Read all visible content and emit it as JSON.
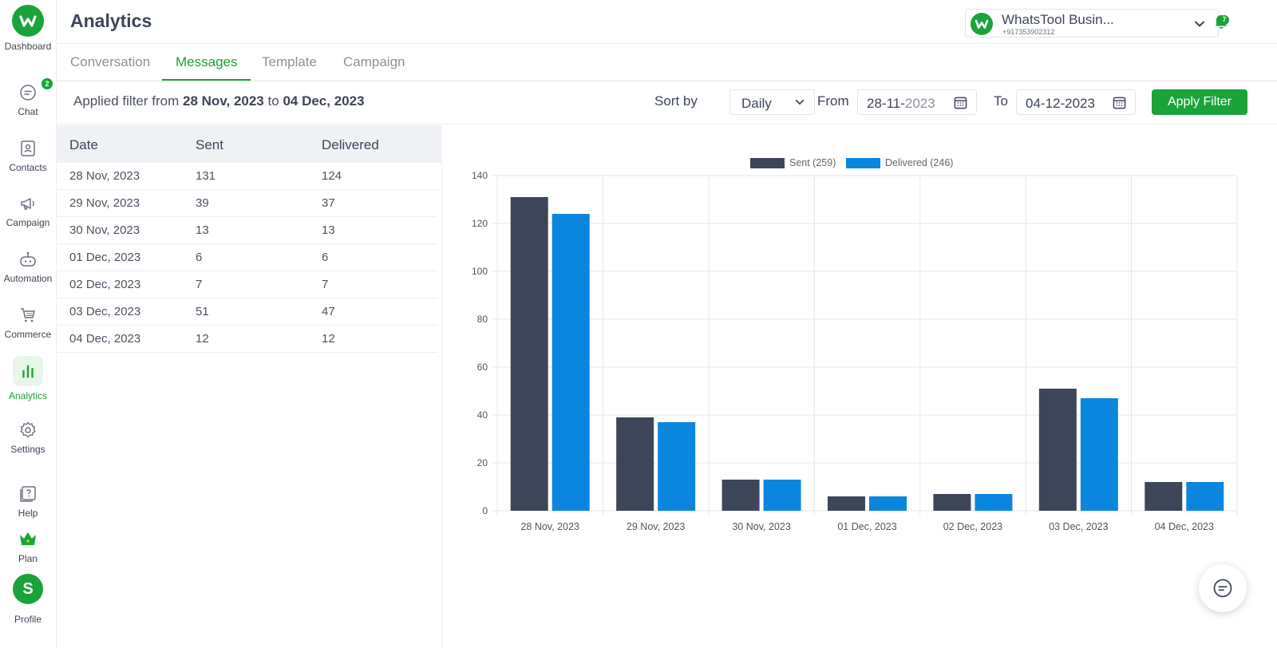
{
  "sidebar": {
    "items": [
      {
        "label": "Dashboard"
      },
      {
        "label": "Chat",
        "badge": "2"
      },
      {
        "label": "Contacts"
      },
      {
        "label": "Campaign"
      },
      {
        "label": "Automation"
      },
      {
        "label": "Commerce"
      },
      {
        "label": "Analytics",
        "active": true
      },
      {
        "label": "Settings"
      },
      {
        "label": "Help"
      },
      {
        "label": "Plan"
      },
      {
        "label": "Profile",
        "avatar_letter": "S"
      }
    ]
  },
  "header": {
    "title": "Analytics",
    "account_name": "WhatsTool Busin...",
    "account_phone": "+917353902312",
    "notification_count": "7"
  },
  "tabs": [
    {
      "label": "Conversation"
    },
    {
      "label": "Messages",
      "active": true
    },
    {
      "label": "Template"
    },
    {
      "label": "Campaign"
    }
  ],
  "filter": {
    "applied_prefix": "Applied filter from",
    "applied_from": "28 Nov, 2023",
    "applied_to_word": "to",
    "applied_to": "04 Dec, 2023",
    "sort_label": "Sort by",
    "sort_value": "Daily",
    "from_label": "From",
    "from_value_main": "28-11-",
    "from_value_year": "2023",
    "to_label": "To",
    "to_value": "04-12-2023",
    "apply_button": "Apply Filter"
  },
  "table": {
    "headers": [
      "Date",
      "Sent",
      "Delivered"
    ],
    "rows": [
      [
        "28 Nov, 2023",
        "131",
        "124"
      ],
      [
        "29 Nov, 2023",
        "39",
        "37"
      ],
      [
        "30 Nov, 2023",
        "13",
        "13"
      ],
      [
        "01 Dec, 2023",
        "6",
        "6"
      ],
      [
        "02 Dec, 2023",
        "7",
        "7"
      ],
      [
        "03 Dec, 2023",
        "51",
        "47"
      ],
      [
        "04 Dec, 2023",
        "12",
        "12"
      ]
    ]
  },
  "colors": {
    "brand": "#1aa33a",
    "sent": "#3d4659",
    "delivered": "#0b86de"
  },
  "chart_data": {
    "type": "bar",
    "categories": [
      "28 Nov, 2023",
      "29 Nov, 2023",
      "30 Nov, 2023",
      "01 Dec, 2023",
      "02 Dec, 2023",
      "03 Dec, 2023",
      "04 Dec, 2023"
    ],
    "series": [
      {
        "name": "Sent (259)",
        "values": [
          131,
          39,
          13,
          6,
          7,
          51,
          12
        ],
        "color": "#3d4659"
      },
      {
        "name": "Delivered (246)",
        "values": [
          124,
          37,
          13,
          6,
          7,
          47,
          12
        ],
        "color": "#0b86de"
      }
    ],
    "ylim": [
      0,
      140
    ],
    "yticks": [
      0,
      20,
      40,
      60,
      80,
      100,
      120,
      140
    ],
    "grid": true,
    "legend": "top-center"
  }
}
